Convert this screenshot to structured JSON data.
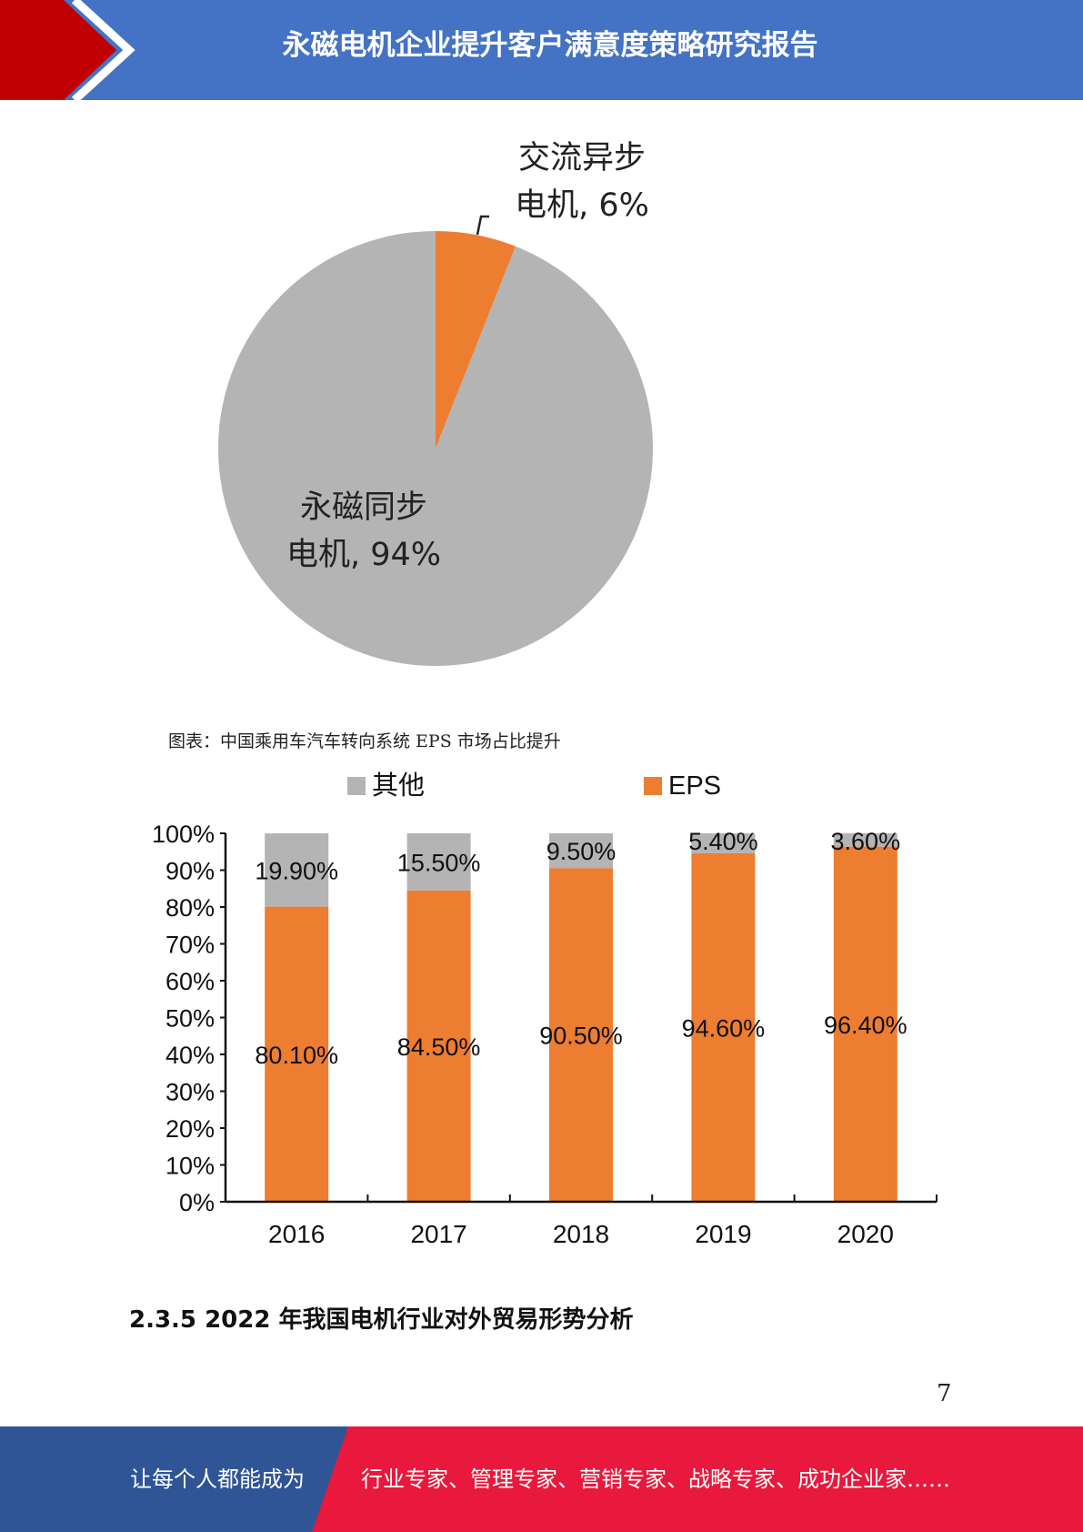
{
  "header": {
    "title": "永磁电机企业提升客户满意度策略研究报告",
    "colors": {
      "blue": "#4472c4",
      "red": "#c00000"
    }
  },
  "pie": {
    "chart_data": {
      "type": "pie",
      "slices": [
        {
          "label_line1": "交流异步",
          "label_line2": "电机, 6%",
          "value": 6,
          "color": "#ed7d31"
        },
        {
          "label_line1": "永磁同步",
          "label_line2": "电机, 94%",
          "value": 94,
          "color": "#b4b4b4"
        }
      ]
    }
  },
  "caption": "图表：中国乘用车汽车转向系统 EPS 市场占比提升",
  "chart_data": {
    "type": "bar",
    "stacked": true,
    "categories": [
      "2016",
      "2017",
      "2018",
      "2019",
      "2020"
    ],
    "series": [
      {
        "name": "EPS",
        "color": "#ed7d31",
        "values": [
          80.1,
          84.5,
          90.5,
          94.6,
          96.4
        ],
        "labels": [
          "80.10%",
          "84.50%",
          "90.50%",
          "94.60%",
          "96.40%"
        ]
      },
      {
        "name": "其他",
        "color": "#b4b4b4",
        "values": [
          19.9,
          15.5,
          9.5,
          5.4,
          3.6
        ],
        "labels": [
          "19.90%",
          "15.50%",
          "9.50%",
          "5.40%",
          "3.60%"
        ]
      }
    ],
    "legend_order": [
      "其他",
      "EPS"
    ],
    "legend_position": "top",
    "yticks": [
      "0%",
      "10%",
      "20%",
      "30%",
      "40%",
      "50%",
      "60%",
      "70%",
      "80%",
      "90%",
      "100%"
    ],
    "ylim": [
      0,
      100
    ],
    "grid": false
  },
  "section_heading": "2.3.5 2022 年我国电机行业对外贸易形势分析",
  "page_number": "7",
  "footer": {
    "left_text": "让每个人都能成为",
    "right_text": "行业专家、管理专家、营销专家、战略专家、成功企业家……",
    "colors": {
      "blue": "#2f5597",
      "red": "#e8193c"
    }
  }
}
